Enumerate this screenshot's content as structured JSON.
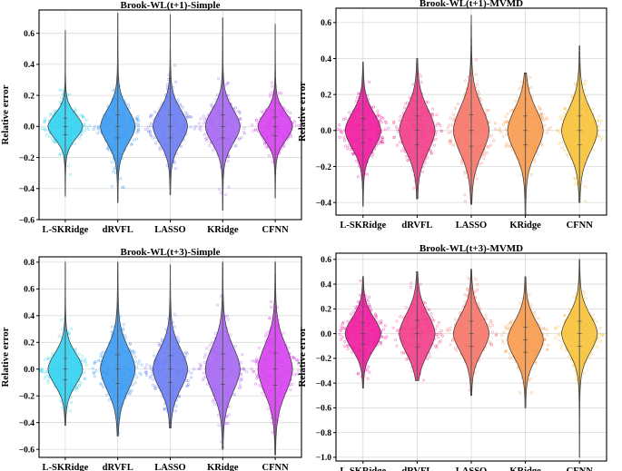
{
  "chart_data": [
    {
      "type": "violin",
      "title": "Brook-WL(t+1)-Simple",
      "ylabel": "Relative error",
      "xlabel": "",
      "ylim": [
        -0.6,
        0.75
      ],
      "yticks": [
        -0.6,
        -0.4,
        -0.2,
        0.0,
        0.2,
        0.4,
        0.6
      ],
      "ytick_labels": [
        "−0.6",
        "−0.4",
        "−0.2",
        "0.0",
        "0.2",
        "0.4",
        "0.6"
      ],
      "categories": [
        "L-SKRidge",
        "dRVFL",
        "LASSO",
        "KRidge",
        "CFNN"
      ],
      "colors": [
        "#33d1f0",
        "#3a9af2",
        "#6a7cf2",
        "#a566f2",
        "#d640f0"
      ],
      "distributions": [
        {
          "name": "L-SKRidge",
          "min": -0.45,
          "max": 0.62,
          "median": 0.0,
          "spread": 0.08
        },
        {
          "name": "dRVFL",
          "min": -0.49,
          "max": 0.73,
          "median": 0.0,
          "spread": 0.11
        },
        {
          "name": "LASSO",
          "min": -0.44,
          "max": 0.72,
          "median": 0.0,
          "spread": 0.11
        },
        {
          "name": "KRidge",
          "min": -0.54,
          "max": 0.7,
          "median": 0.0,
          "spread": 0.11
        },
        {
          "name": "CFNN",
          "min": -0.46,
          "max": 0.66,
          "median": 0.0,
          "spread": 0.09
        }
      ]
    },
    {
      "type": "violin",
      "title": "Brook-WL(t+1)-MVMD",
      "ylabel": "Relative error",
      "xlabel": "",
      "ylim": [
        -0.47,
        0.68
      ],
      "yticks": [
        -0.4,
        -0.2,
        0.0,
        0.2,
        0.4,
        0.6
      ],
      "ytick_labels": [
        "−0.4",
        "−0.2",
        "0.0",
        "0.2",
        "0.4",
        "0.6"
      ],
      "categories": [
        "L-SKRidge",
        "dRVFL",
        "LASSO",
        "KRidge",
        "CFNN"
      ],
      "colors": [
        "#f01a9e",
        "#f23c8a",
        "#f57468",
        "#f79a4d",
        "#f7c23a"
      ],
      "distributions": [
        {
          "name": "L-SKRidge",
          "min": -0.42,
          "max": 0.38,
          "median": 0.0,
          "spread": 0.1
        },
        {
          "name": "dRVFL",
          "min": -0.38,
          "max": 0.4,
          "median": 0.0,
          "spread": 0.12
        },
        {
          "name": "LASSO",
          "min": -0.41,
          "max": 0.64,
          "median": 0.0,
          "spread": 0.13
        },
        {
          "name": "KRidge",
          "min": -0.48,
          "max": 0.32,
          "median": 0.0,
          "spread": 0.12
        },
        {
          "name": "CFNN",
          "min": -0.4,
          "max": 0.47,
          "median": 0.0,
          "spread": 0.12
        }
      ]
    },
    {
      "type": "violin",
      "title": "Brook-WL(t+3)-Simple",
      "ylabel": "Relative error",
      "xlabel": "",
      "ylim": [
        -0.66,
        0.84
      ],
      "yticks": [
        -0.6,
        -0.4,
        -0.2,
        0.0,
        0.2,
        0.4,
        0.6,
        0.8
      ],
      "ytick_labels": [
        "−0.6",
        "−0.4",
        "−0.2",
        "0.0",
        "0.2",
        "0.4",
        "0.6",
        "0.8"
      ],
      "categories": [
        "L-SKRidge",
        "dRVFL",
        "LASSO",
        "KRidge",
        "CFNN"
      ],
      "colors": [
        "#33d1f0",
        "#3a9af2",
        "#6a7cf2",
        "#a566f2",
        "#d640f0"
      ],
      "distributions": [
        {
          "name": "L-SKRidge",
          "min": -0.42,
          "max": 0.8,
          "median": 0.0,
          "spread": 0.12
        },
        {
          "name": "dRVFL",
          "min": -0.5,
          "max": 0.8,
          "median": 0.0,
          "spread": 0.16
        },
        {
          "name": "LASSO",
          "min": -0.44,
          "max": 0.78,
          "median": 0.0,
          "spread": 0.15
        },
        {
          "name": "KRidge",
          "min": -0.6,
          "max": 0.8,
          "median": 0.0,
          "spread": 0.17
        },
        {
          "name": "CFNN",
          "min": -0.64,
          "max": 0.8,
          "median": 0.0,
          "spread": 0.18
        }
      ]
    },
    {
      "type": "violin",
      "title": "Brook-WL(t+3)-MVMD",
      "ylabel": "Relative error",
      "xlabel": "",
      "ylim": [
        -1.03,
        0.65
      ],
      "yticks": [
        -1.0,
        -0.8,
        -0.6,
        -0.4,
        -0.2,
        0.0,
        0.2,
        0.4,
        0.6
      ],
      "ytick_labels": [
        "−1.0",
        "−0.8",
        "−0.6",
        "−0.4",
        "−0.2",
        "0.0",
        "0.2",
        "0.4",
        "0.6"
      ],
      "categories": [
        "L-SKRidge",
        "dRVFL",
        "LASSO",
        "KRidge",
        "CFNN"
      ],
      "colors": [
        "#f01a9e",
        "#f23c8a",
        "#f57468",
        "#f79a4d",
        "#f7c23a"
      ],
      "distributions": [
        {
          "name": "L-SKRidge",
          "min": -0.44,
          "max": 0.46,
          "median": 0.0,
          "spread": 0.13
        },
        {
          "name": "dRVFL",
          "min": -0.38,
          "max": 0.5,
          "median": 0.0,
          "spread": 0.16
        },
        {
          "name": "LASSO",
          "min": -0.5,
          "max": 0.52,
          "median": 0.0,
          "spread": 0.15
        },
        {
          "name": "KRidge",
          "min": -0.6,
          "max": 0.46,
          "median": -0.05,
          "spread": 0.15
        },
        {
          "name": "CFNN",
          "min": -1.0,
          "max": 0.6,
          "median": 0.0,
          "spread": 0.15
        }
      ]
    }
  ]
}
